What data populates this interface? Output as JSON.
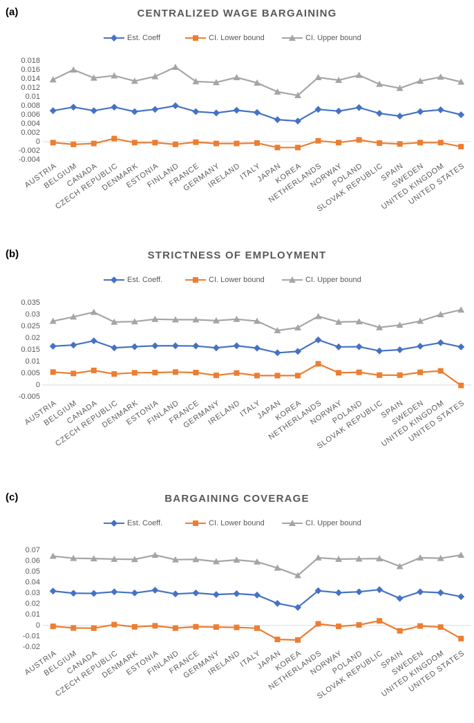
{
  "chart_data": [
    {
      "type": "line",
      "label": "(a)",
      "title": "CENTRALIZED WAGE BARGAINING",
      "categories": [
        "AUSTRIA",
        "BELGIUM",
        "CANADA",
        "CZECH REPUBLIC",
        "DENMARK",
        "ESTONIA",
        "FINLAND",
        "FRANCE",
        "GERMANY",
        "IRELAND",
        "ITALY",
        "JAPAN",
        "KOREA",
        "NETHERLANDS",
        "NORWAY",
        "POLAND",
        "SLOVAK REPUBLIC",
        "SPAIN",
        "SWEDEN",
        "UNITED KINGDOM",
        "UNITED STATES"
      ],
      "series": [
        {
          "name": "Est. Coeff",
          "color": "#4472c4",
          "marker": "diamond",
          "values": [
            0.0069,
            0.0077,
            0.0069,
            0.0077,
            0.0067,
            0.0072,
            0.008,
            0.0067,
            0.0064,
            0.007,
            0.0065,
            0.0049,
            0.0046,
            0.0072,
            0.0068,
            0.0076,
            0.0063,
            0.0057,
            0.0067,
            0.0071,
            0.006
          ]
        },
        {
          "name": "CI. Lower bound",
          "color": "#ed7d31",
          "marker": "square",
          "values": [
            -0.0002,
            -0.0006,
            -0.0004,
            0.0007,
            -0.0002,
            -0.0002,
            -0.0006,
            -0.0001,
            -0.0004,
            -0.0004,
            -0.0003,
            -0.0013,
            -0.0013,
            0.0002,
            -0.0002,
            0.0004,
            -0.0003,
            -0.0005,
            -0.0002,
            -0.0002,
            -0.0011
          ]
        },
        {
          "name": "CI. Upper bound",
          "color": "#a5a5a5",
          "marker": "triangle",
          "values": [
            0.0138,
            0.016,
            0.0142,
            0.0147,
            0.0135,
            0.0145,
            0.0166,
            0.0134,
            0.0132,
            0.0143,
            0.0131,
            0.0111,
            0.0103,
            0.0143,
            0.0137,
            0.0148,
            0.0128,
            0.0119,
            0.0135,
            0.0144,
            0.0133
          ]
        }
      ],
      "ylim": [
        -0.004,
        0.018
      ],
      "yticks": [
        -0.004,
        -0.002,
        0,
        0.002,
        0.004,
        0.006,
        0.008,
        0.01,
        0.012,
        0.014,
        0.016,
        0.018
      ],
      "grid": false
    },
    {
      "type": "line",
      "label": "(b)",
      "title": "STRICTNESS OF EMPLOYMENT",
      "categories": [
        "AUSTRIA",
        "BELGIUM",
        "CANADA",
        "CZECH REPUBLIC",
        "DENMARK",
        "ESTONIA",
        "FINLAND",
        "FRANCE",
        "GERMANY",
        "IRELAND",
        "ITALY",
        "JAPAN",
        "KOREA",
        "NETHERLANDS",
        "NORWAY",
        "POLAND",
        "SLOVAK REPUBLIC",
        "SPAIN",
        "SWEDEN",
        "UNITED KINGDOM",
        "UNITED STATES"
      ],
      "series": [
        {
          "name": "Est. Coeff.",
          "color": "#4472c4",
          "marker": "diamond",
          "values": [
            0.0165,
            0.017,
            0.0188,
            0.0158,
            0.0163,
            0.0167,
            0.0167,
            0.0166,
            0.0158,
            0.0167,
            0.0157,
            0.0137,
            0.0143,
            0.0192,
            0.0162,
            0.0163,
            0.0145,
            0.015,
            0.0165,
            0.018,
            0.0162
          ]
        },
        {
          "name": "CI. Lower bound",
          "color": "#ed7d31",
          "marker": "square",
          "values": [
            0.0055,
            0.0049,
            0.0062,
            0.0047,
            0.0052,
            0.0053,
            0.0055,
            0.0053,
            0.0041,
            0.0051,
            0.004,
            0.004,
            0.004,
            0.009,
            0.0052,
            0.0054,
            0.0042,
            0.0042,
            0.0054,
            0.006,
            -0.0002
          ]
        },
        {
          "name": "CI. Upper bound",
          "color": "#a5a5a5",
          "marker": "triangle",
          "values": [
            0.0272,
            0.029,
            0.031,
            0.0268,
            0.027,
            0.028,
            0.0278,
            0.0278,
            0.0274,
            0.028,
            0.0272,
            0.0232,
            0.0244,
            0.0292,
            0.0268,
            0.027,
            0.0245,
            0.0255,
            0.0272,
            0.03,
            0.032
          ]
        }
      ],
      "ylim": [
        -0.005,
        0.035
      ],
      "yticks": [
        -0.005,
        0,
        0.005,
        0.01,
        0.015,
        0.02,
        0.025,
        0.03,
        0.035
      ],
      "grid": false
    },
    {
      "type": "line",
      "label": "(c)",
      "title": "BARGAINING COVERAGE",
      "categories": [
        "AUSTRIA",
        "BELGIUM",
        "CANADA",
        "CZECH REPUBLIC",
        "DENMARK",
        "ESTONIA",
        "FINLAND",
        "FRANCE",
        "GERMANY",
        "IRELAND",
        "ITALY",
        "JAPAN",
        "KOREA",
        "NETHERLANDS",
        "NORWAY",
        "POLAND",
        "SLOVAK REPUBLIC",
        "SPAIN",
        "SWEDEN",
        "UNITED KINGDOM",
        "UNITED STATES"
      ],
      "series": [
        {
          "name": "Est. Coeff.",
          "color": "#4472c4",
          "marker": "diamond",
          "values": [
            0.032,
            0.03,
            0.0298,
            0.0313,
            0.0302,
            0.0328,
            0.0293,
            0.0302,
            0.0288,
            0.0296,
            0.0283,
            0.0205,
            0.0168,
            0.0323,
            0.0305,
            0.0313,
            0.0333,
            0.0252,
            0.0313,
            0.0305,
            0.0268
          ]
        },
        {
          "name": "CI. Lower bound",
          "color": "#ed7d31",
          "marker": "square",
          "values": [
            -0.0008,
            -0.0023,
            -0.0025,
            0.0008,
            -0.0013,
            -0.0003,
            -0.0025,
            -0.0012,
            -0.0015,
            -0.0018,
            -0.0025,
            -0.013,
            -0.0135,
            0.0015,
            -0.0008,
            0.0005,
            0.0043,
            -0.005,
            -0.0005,
            -0.0015,
            -0.0122
          ]
        },
        {
          "name": "CI. Upper bound",
          "color": "#a5a5a5",
          "marker": "triangle",
          "values": [
            0.0645,
            0.0625,
            0.0622,
            0.0617,
            0.0615,
            0.0655,
            0.0612,
            0.0615,
            0.0595,
            0.061,
            0.0592,
            0.0535,
            0.0465,
            0.063,
            0.0617,
            0.062,
            0.0622,
            0.055,
            0.063,
            0.0625,
            0.0655
          ]
        }
      ],
      "ylim": [
        -0.02,
        0.07
      ],
      "yticks": [
        -0.02,
        -0.01,
        0,
        0.01,
        0.02,
        0.03,
        0.04,
        0.05,
        0.06,
        0.07
      ],
      "grid": false
    }
  ]
}
